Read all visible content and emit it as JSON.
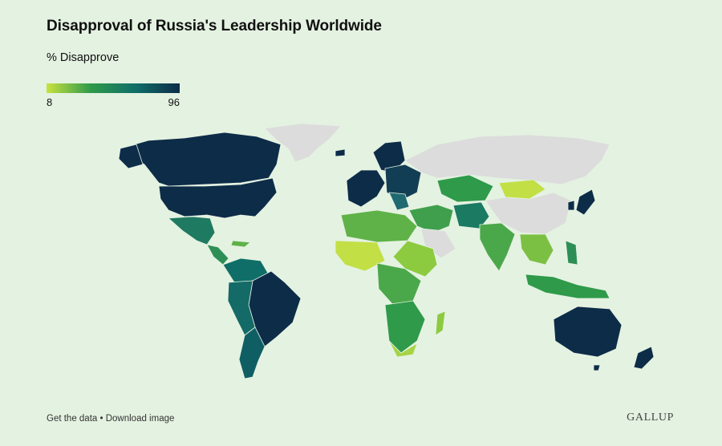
{
  "title": "Disapproval of Russia's Leadership Worldwide",
  "subtitle": "% Disapprove",
  "legend": {
    "min_label": "8",
    "max_label": "96",
    "min_value": 8,
    "max_value": 96,
    "colors": [
      "#c9e240",
      "#2e9a4a",
      "#0f6e68",
      "#0d2c48"
    ]
  },
  "no_data_color": "#dcdcdc",
  "footer": {
    "get_data": "Get the data",
    "separator": " • ",
    "download": "Download image"
  },
  "brand": "GALLUP"
}
